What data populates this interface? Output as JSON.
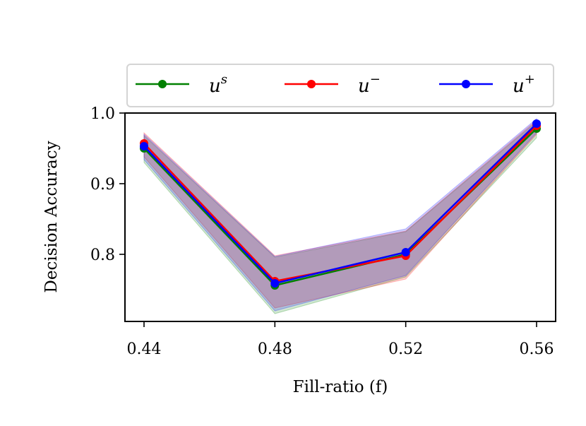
{
  "chart_data": {
    "type": "line",
    "title": "",
    "xlabel": "Fill-ratio (f)",
    "ylabel": "Decision Accuracy",
    "x": [
      0.44,
      0.48,
      0.52,
      0.56
    ],
    "x_tick_labels": [
      "0.44",
      "0.48",
      "0.52",
      "0.56"
    ],
    "y_ticks": [
      0.8,
      0.9,
      1.0
    ],
    "y_tick_labels": [
      "0.8",
      "0.9",
      "1.0"
    ],
    "ylim": [
      0.705,
      1.0
    ],
    "grid": false,
    "legend_position": "top",
    "series": [
      {
        "name": "u^s",
        "label_base": "u",
        "label_sup": "s",
        "color": "#008000",
        "values": [
          0.95,
          0.756,
          0.8,
          0.978
        ],
        "band_lower": [
          0.93,
          0.716,
          0.768,
          0.965
        ],
        "band_upper": [
          0.968,
          0.796,
          0.832,
          0.988
        ]
      },
      {
        "name": "u^-",
        "label_base": "u",
        "label_sup": "−",
        "color": "#ff0000",
        "values": [
          0.957,
          0.762,
          0.798,
          0.982
        ],
        "band_lower": [
          0.938,
          0.724,
          0.765,
          0.97
        ],
        "band_upper": [
          0.972,
          0.798,
          0.833,
          0.99
        ]
      },
      {
        "name": "u^+",
        "label_base": "u",
        "label_sup": "+",
        "color": "#0000ff",
        "values": [
          0.953,
          0.759,
          0.803,
          0.985
        ],
        "band_lower": [
          0.934,
          0.72,
          0.77,
          0.972
        ],
        "band_upper": [
          0.97,
          0.797,
          0.836,
          0.992
        ]
      }
    ]
  }
}
